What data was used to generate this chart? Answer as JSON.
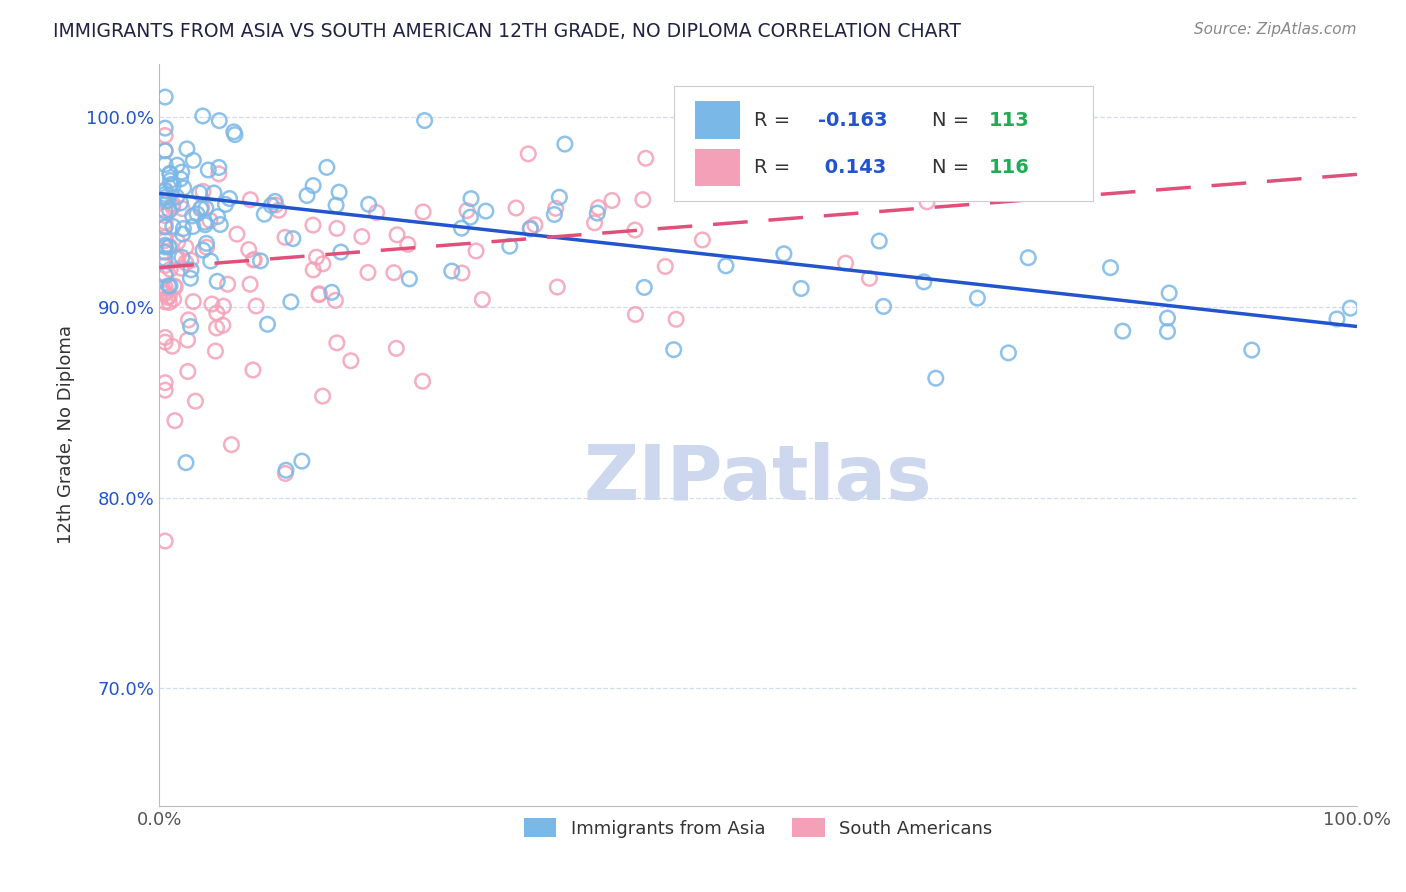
{
  "title": "IMMIGRANTS FROM ASIA VS SOUTH AMERICAN 12TH GRADE, NO DIPLOMA CORRELATION CHART",
  "source_text": "Source: ZipAtlas.com",
  "ylabel_label": "12th Grade, No Diploma",
  "legend_labels": [
    "Immigrants from Asia",
    "South Americans"
  ],
  "blue_color": "#7ab8e8",
  "pink_color": "#f4a0b8",
  "blue_line_color": "#2255cc",
  "pink_line_color": "#e0507a",
  "title_color": "#222244",
  "r_value_color": "#2255cc",
  "n_value_color": "#22aa55",
  "watermark_color": "#cdd8ee",
  "xmin": 0.0,
  "xmax": 1.0,
  "ymin": 0.638,
  "ymax": 1.028,
  "blue_trend_x0": 0.0,
  "blue_trend_y0": 0.96,
  "blue_trend_x1": 1.0,
  "blue_trend_y1": 0.89,
  "pink_trend_x0": 0.0,
  "pink_trend_y0": 0.921,
  "pink_trend_x1": 1.0,
  "pink_trend_y1": 0.97,
  "ytick_vals": [
    0.7,
    0.8,
    0.9,
    1.0
  ],
  "ytick_labels": [
    "70.0%",
    "80.0%",
    "90.0%",
    "100.0%"
  ],
  "xtick_vals": [
    0.0,
    1.0
  ],
  "xtick_labels": [
    "0.0%",
    "100.0%"
  ],
  "legend_r_blue": "-0.163",
  "legend_r_pink": "0.143",
  "legend_n_blue": "113",
  "legend_n_pink": "116"
}
